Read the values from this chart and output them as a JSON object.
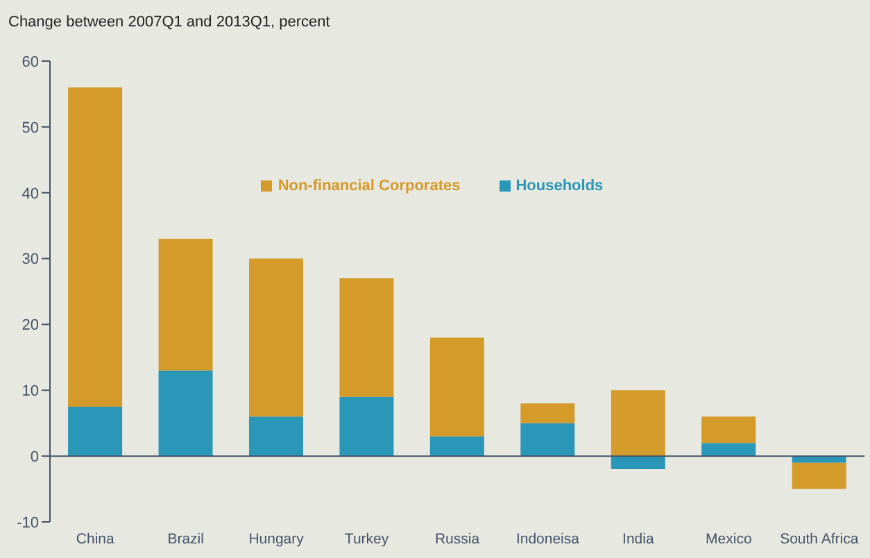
{
  "chart_data": {
    "type": "bar",
    "title": "Change between 2007Q1 and 2013Q1, percent",
    "categories": [
      "China",
      "Brazil",
      "Hungary",
      "Turkey",
      "Russia",
      "Indoneisa",
      "India",
      "Mexico",
      "South Africa"
    ],
    "stacked": true,
    "series": [
      {
        "name": "Households",
        "color": "#2a96b8",
        "values": [
          7.5,
          13,
          6,
          9,
          3,
          5,
          -2,
          2,
          -1
        ]
      },
      {
        "name": "Non-financial Corporates",
        "color": "#d49a2a",
        "values": [
          48.5,
          20,
          24,
          18,
          15,
          3,
          10,
          4,
          -4
        ]
      }
    ],
    "ylim": [
      -10,
      60
    ],
    "yticks": [
      -10,
      0,
      10,
      20,
      30,
      40,
      50,
      60
    ],
    "grid": false,
    "legend": "top",
    "ref_lines": [
      {
        "axis": "y",
        "value": 0,
        "color": "#44546a"
      }
    ]
  }
}
